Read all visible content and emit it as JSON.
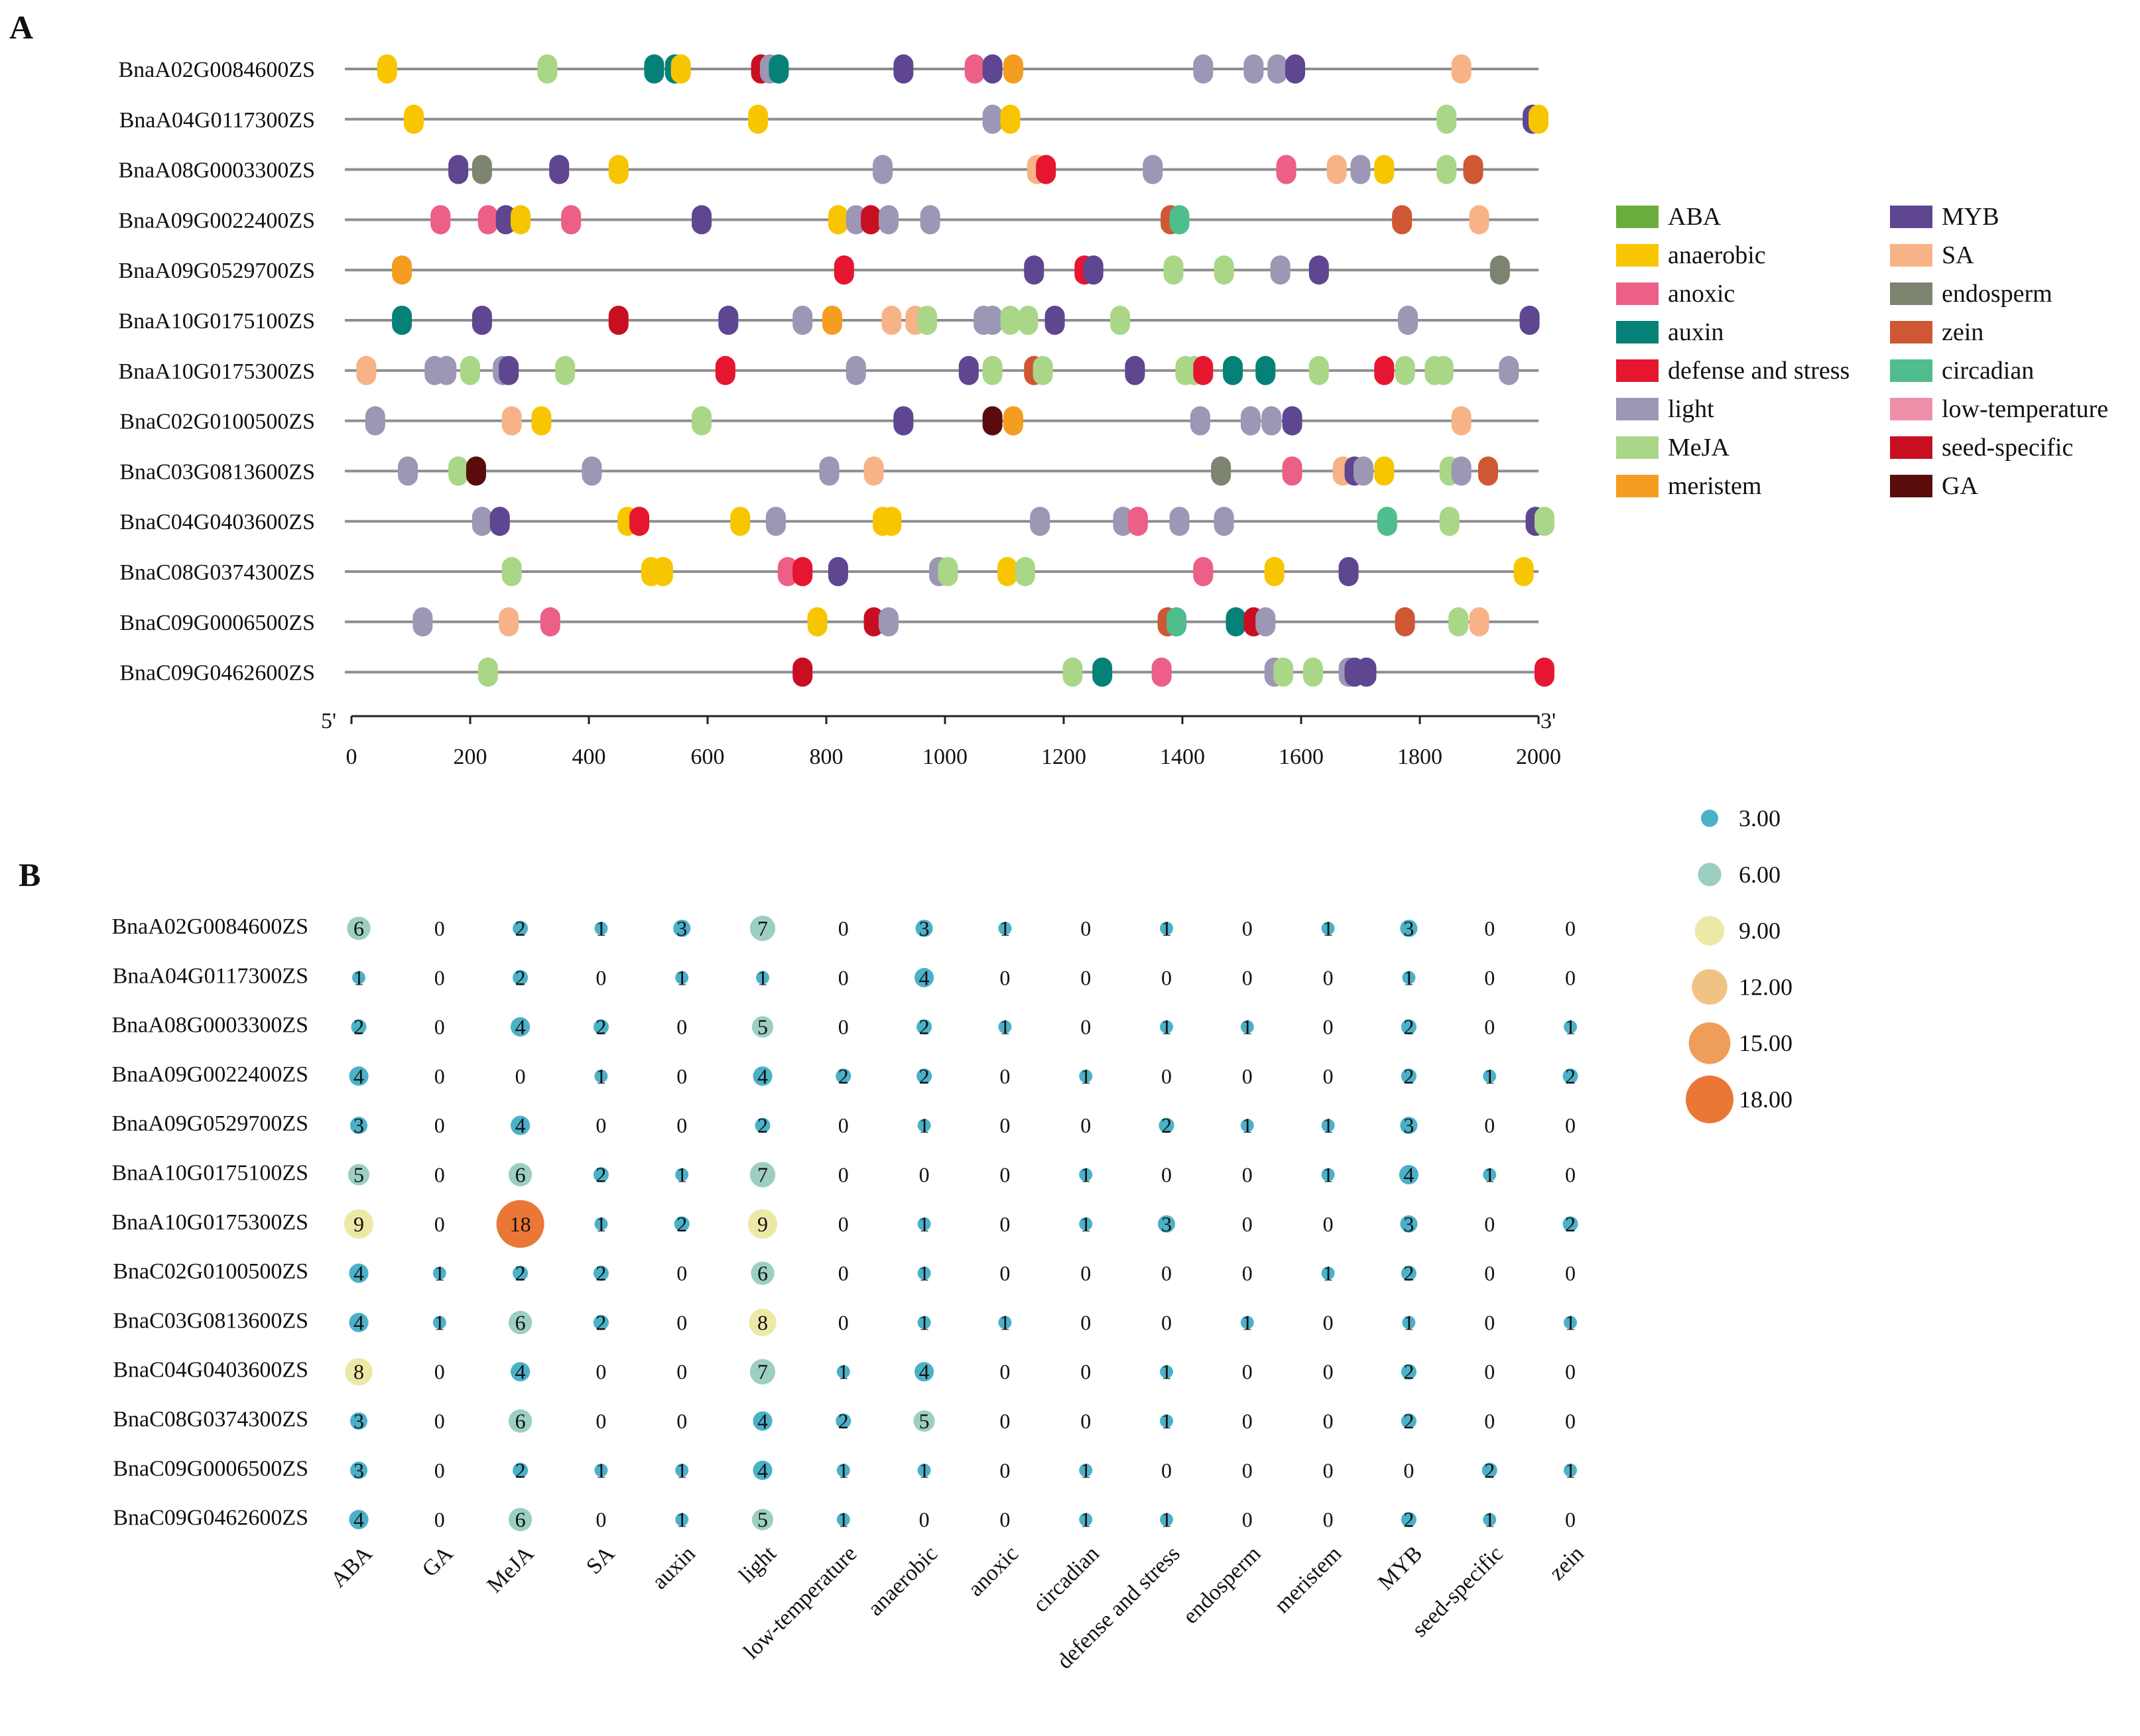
{
  "panel_labels": {
    "a": "A",
    "b": "B"
  },
  "colors": {
    "ABA": "#6aad3d",
    "anaerobic": "#f7c600",
    "anoxic": "#ec5f86",
    "auxin": "#058178",
    "defense and stress": "#e61630",
    "light": "#9b97b5",
    "MeJA": "#a9d787",
    "meristem": "#f59d21",
    "MYB": "#5f4691",
    "SA": "#f7b387",
    "endosperm": "#7d8470",
    "zein": "#cf5734",
    "circadian": "#4fbd8c",
    "low-temperature": "#ee8fa8",
    "seed-specific": "#c80f22",
    "GA": "#5a0c0c"
  },
  "chart_data": [
    {
      "type": "promoter-map",
      "genes": [
        "BnaA02G0084600ZS",
        "BnaA04G0117300ZS",
        "BnaA08G0003300ZS",
        "BnaA09G0022400ZS",
        "BnaA09G0529700ZS",
        "BnaA10G0175100ZS",
        "BnaA10G0175300ZS",
        "BnaC02G0100500ZS",
        "BnaC03G0813600ZS",
        "BnaC04G0403600ZS",
        "BnaC08G0374300ZS",
        "BnaC09G0006500ZS",
        "BnaC09G0462600ZS"
      ],
      "xlim": [
        0,
        2000
      ],
      "xticks": [
        "0",
        "200",
        "400",
        "600",
        "800",
        "1000",
        "1200",
        "1400",
        "1600",
        "1800",
        "2000"
      ],
      "five_prime": "5'",
      "three_prime": "3'",
      "legend": [
        "ABA",
        "anaerobic",
        "anoxic",
        "auxin",
        "defense and stress",
        "light",
        "MeJA",
        "meristem",
        "MYB",
        "SA",
        "endosperm",
        "zein",
        "circadian",
        "low-temperature",
        "seed-specific",
        "GA"
      ],
      "elements": [
        [
          [
            60,
            "anaerobic"
          ],
          [
            330,
            "MeJA"
          ],
          [
            510,
            "auxin"
          ],
          [
            545,
            "auxin"
          ],
          [
            555,
            "anaerobic"
          ],
          [
            690,
            "seed-specific"
          ],
          [
            705,
            "light"
          ],
          [
            720,
            "auxin"
          ],
          [
            930,
            "MYB"
          ],
          [
            1050,
            "anoxic"
          ],
          [
            1080,
            "MYB"
          ],
          [
            1115,
            "meristem"
          ],
          [
            1435,
            "light"
          ],
          [
            1520,
            "light"
          ],
          [
            1560,
            "light"
          ],
          [
            1590,
            "MYB"
          ],
          [
            1870,
            "SA"
          ]
        ],
        [
          [
            105,
            "anaerobic"
          ],
          [
            685,
            "anaerobic"
          ],
          [
            1080,
            "light"
          ],
          [
            1110,
            "anaerobic"
          ],
          [
            1845,
            "MeJA"
          ],
          [
            1990,
            "MYB"
          ],
          [
            2000,
            "anaerobic"
          ]
        ],
        [
          [
            180,
            "MYB"
          ],
          [
            220,
            "endosperm"
          ],
          [
            350,
            "MYB"
          ],
          [
            450,
            "anaerobic"
          ],
          [
            895,
            "light"
          ],
          [
            1155,
            "SA"
          ],
          [
            1170,
            "defense and stress"
          ],
          [
            1350,
            "light"
          ],
          [
            1575,
            "anoxic"
          ],
          [
            1660,
            "SA"
          ],
          [
            1700,
            "light"
          ],
          [
            1740,
            "anaerobic"
          ],
          [
            1845,
            "MeJA"
          ],
          [
            1890,
            "zein"
          ]
        ],
        [
          [
            150,
            "anoxic"
          ],
          [
            230,
            "anoxic"
          ],
          [
            260,
            "MYB"
          ],
          [
            285,
            "anaerobic"
          ],
          [
            370,
            "anoxic"
          ],
          [
            590,
            "MYB"
          ],
          [
            820,
            "anaerobic"
          ],
          [
            850,
            "light"
          ],
          [
            875,
            "seed-specific"
          ],
          [
            905,
            "light"
          ],
          [
            975,
            "light"
          ],
          [
            1380,
            "zein"
          ],
          [
            1395,
            "circadian"
          ],
          [
            1770,
            "zein"
          ],
          [
            1900,
            "SA"
          ]
        ],
        [
          [
            85,
            "meristem"
          ],
          [
            830,
            "defense and stress"
          ],
          [
            1150,
            "MYB"
          ],
          [
            1235,
            "defense and stress"
          ],
          [
            1250,
            "MYB"
          ],
          [
            1385,
            "MeJA"
          ],
          [
            1470,
            "MeJA"
          ],
          [
            1565,
            "light"
          ],
          [
            1630,
            "MYB"
          ],
          [
            1935,
            "endosperm"
          ]
        ],
        [
          [
            85,
            "auxin"
          ],
          [
            220,
            "MYB"
          ],
          [
            450,
            "seed-specific"
          ],
          [
            635,
            "MYB"
          ],
          [
            760,
            "light"
          ],
          [
            810,
            "meristem"
          ],
          [
            910,
            "SA"
          ],
          [
            950,
            "SA"
          ],
          [
            970,
            "MeJA"
          ],
          [
            1065,
            "light"
          ],
          [
            1080,
            "light"
          ],
          [
            1110,
            "MeJA"
          ],
          [
            1140,
            "MeJA"
          ],
          [
            1185,
            "MYB"
          ],
          [
            1295,
            "MeJA"
          ],
          [
            1780,
            "light"
          ],
          [
            1985,
            "MYB"
          ]
        ],
        [
          [
            25,
            "SA"
          ],
          [
            140,
            "light"
          ],
          [
            160,
            "light"
          ],
          [
            200,
            "MeJA"
          ],
          [
            255,
            "light"
          ],
          [
            265,
            "MYB"
          ],
          [
            360,
            "MeJA"
          ],
          [
            630,
            "defense and stress"
          ],
          [
            850,
            "light"
          ],
          [
            1040,
            "MYB"
          ],
          [
            1080,
            "MeJA"
          ],
          [
            1150,
            "zein"
          ],
          [
            1165,
            "MeJA"
          ],
          [
            1320,
            "MYB"
          ],
          [
            1405,
            "MeJA"
          ],
          [
            1420,
            "MeJA"
          ],
          [
            1435,
            "defense and stress"
          ],
          [
            1485,
            "auxin"
          ],
          [
            1540,
            "auxin"
          ],
          [
            1630,
            "MeJA"
          ],
          [
            1740,
            "defense and stress"
          ],
          [
            1775,
            "MeJA"
          ],
          [
            1825,
            "MeJA"
          ],
          [
            1840,
            "MeJA"
          ],
          [
            1950,
            "light"
          ]
        ],
        [
          [
            40,
            "light"
          ],
          [
            270,
            "SA"
          ],
          [
            320,
            "anaerobic"
          ],
          [
            590,
            "MeJA"
          ],
          [
            930,
            "MYB"
          ],
          [
            1080,
            "GA"
          ],
          [
            1115,
            "meristem"
          ],
          [
            1430,
            "light"
          ],
          [
            1515,
            "light"
          ],
          [
            1550,
            "light"
          ],
          [
            1585,
            "MYB"
          ],
          [
            1870,
            "SA"
          ]
        ],
        [
          [
            95,
            "light"
          ],
          [
            180,
            "MeJA"
          ],
          [
            210,
            "GA"
          ],
          [
            405,
            "light"
          ],
          [
            805,
            "light"
          ],
          [
            880,
            "SA"
          ],
          [
            1465,
            "endosperm"
          ],
          [
            1585,
            "anoxic"
          ],
          [
            1670,
            "SA"
          ],
          [
            1690,
            "MYB"
          ],
          [
            1705,
            "light"
          ],
          [
            1740,
            "anaerobic"
          ],
          [
            1850,
            "MeJA"
          ],
          [
            1870,
            "light"
          ],
          [
            1915,
            "zein"
          ]
        ],
        [
          [
            220,
            "light"
          ],
          [
            250,
            "MYB"
          ],
          [
            465,
            "anaerobic"
          ],
          [
            485,
            "defense and stress"
          ],
          [
            655,
            "anaerobic"
          ],
          [
            715,
            "light"
          ],
          [
            895,
            "anaerobic"
          ],
          [
            910,
            "anaerobic"
          ],
          [
            1160,
            "light"
          ],
          [
            1300,
            "light"
          ],
          [
            1325,
            "anoxic"
          ],
          [
            1395,
            "light"
          ],
          [
            1470,
            "light"
          ],
          [
            1745,
            "circadian"
          ],
          [
            1850,
            "MeJA"
          ],
          [
            1995,
            "MYB"
          ],
          [
            2010,
            "MeJA"
          ]
        ],
        [
          [
            270,
            "MeJA"
          ],
          [
            505,
            "anaerobic"
          ],
          [
            525,
            "anaerobic"
          ],
          [
            735,
            "anoxic"
          ],
          [
            760,
            "defense and stress"
          ],
          [
            820,
            "MYB"
          ],
          [
            990,
            "light"
          ],
          [
            1005,
            "MeJA"
          ],
          [
            1105,
            "anaerobic"
          ],
          [
            1135,
            "MeJA"
          ],
          [
            1435,
            "anoxic"
          ],
          [
            1555,
            "anaerobic"
          ],
          [
            1680,
            "MYB"
          ],
          [
            1975,
            "anaerobic"
          ]
        ],
        [
          [
            120,
            "light"
          ],
          [
            265,
            "SA"
          ],
          [
            335,
            "anoxic"
          ],
          [
            785,
            "anaerobic"
          ],
          [
            880,
            "seed-specific"
          ],
          [
            905,
            "light"
          ],
          [
            1375,
            "zein"
          ],
          [
            1390,
            "circadian"
          ],
          [
            1490,
            "auxin"
          ],
          [
            1520,
            "seed-specific"
          ],
          [
            1540,
            "light"
          ],
          [
            1775,
            "zein"
          ],
          [
            1865,
            "MeJA"
          ],
          [
            1900,
            "SA"
          ]
        ],
        [
          [
            230,
            "MeJA"
          ],
          [
            760,
            "seed-specific"
          ],
          [
            1215,
            "MeJA"
          ],
          [
            1265,
            "auxin"
          ],
          [
            1365,
            "anoxic"
          ],
          [
            1555,
            "light"
          ],
          [
            1570,
            "MeJA"
          ],
          [
            1620,
            "MeJA"
          ],
          [
            1680,
            "light"
          ],
          [
            1690,
            "MYB"
          ],
          [
            1710,
            "MYB"
          ],
          [
            2010,
            "defense and stress"
          ]
        ]
      ]
    },
    {
      "type": "bubble-table",
      "genes": [
        "BnaA02G0084600ZS",
        "BnaA04G0117300ZS",
        "BnaA08G0003300ZS",
        "BnaA09G0022400ZS",
        "BnaA09G0529700ZS",
        "BnaA10G0175100ZS",
        "BnaA10G0175300ZS",
        "BnaC02G0100500ZS",
        "BnaC03G0813600ZS",
        "BnaC04G0403600ZS",
        "BnaC08G0374300ZS",
        "BnaC09G0006500ZS",
        "BnaC09G0462600ZS"
      ],
      "categories": [
        "ABA",
        "GA",
        "MeJA",
        "SA",
        "auxin",
        "light",
        "low-temperature",
        "anaerobic",
        "anoxic",
        "circadian",
        "defense and stress",
        "endosperm",
        "meristem",
        "MYB",
        "seed-specific",
        "zein"
      ],
      "values": [
        [
          6,
          0,
          2,
          1,
          3,
          7,
          0,
          3,
          1,
          0,
          1,
          0,
          1,
          3,
          0,
          0
        ],
        [
          1,
          0,
          2,
          0,
          1,
          1,
          0,
          4,
          0,
          0,
          0,
          0,
          0,
          1,
          0,
          0
        ],
        [
          2,
          0,
          4,
          2,
          0,
          5,
          0,
          2,
          1,
          0,
          1,
          1,
          0,
          2,
          0,
          1
        ],
        [
          4,
          0,
          0,
          1,
          0,
          4,
          2,
          2,
          0,
          1,
          0,
          0,
          0,
          2,
          1,
          2
        ],
        [
          3,
          0,
          4,
          0,
          0,
          2,
          0,
          1,
          0,
          0,
          2,
          1,
          1,
          3,
          0,
          0
        ],
        [
          5,
          0,
          6,
          2,
          1,
          7,
          0,
          0,
          0,
          1,
          0,
          0,
          1,
          4,
          1,
          0
        ],
        [
          9,
          0,
          18,
          1,
          2,
          9,
          0,
          1,
          0,
          1,
          3,
          0,
          0,
          3,
          0,
          2
        ],
        [
          4,
          1,
          2,
          2,
          0,
          6,
          0,
          1,
          0,
          0,
          0,
          0,
          1,
          2,
          0,
          0
        ],
        [
          4,
          1,
          6,
          2,
          0,
          8,
          0,
          1,
          1,
          0,
          0,
          1,
          0,
          1,
          0,
          1
        ],
        [
          8,
          0,
          4,
          0,
          0,
          7,
          1,
          4,
          0,
          0,
          1,
          0,
          0,
          2,
          0,
          0
        ],
        [
          3,
          0,
          6,
          0,
          0,
          4,
          2,
          5,
          0,
          0,
          1,
          0,
          0,
          2,
          0,
          0
        ],
        [
          3,
          0,
          2,
          1,
          1,
          4,
          1,
          1,
          0,
          1,
          0,
          0,
          0,
          0,
          2,
          1
        ],
        [
          4,
          0,
          6,
          0,
          1,
          5,
          1,
          0,
          0,
          1,
          1,
          0,
          0,
          2,
          1,
          0
        ]
      ],
      "size_legend": [
        "3.00",
        "6.00",
        "9.00",
        "12.00",
        "15.00",
        "18.00"
      ],
      "size_legend_values": [
        3,
        6,
        9,
        12,
        15,
        18
      ],
      "color_scale": [
        "#4bb1c9",
        "#9ccfc1",
        "#eee8a6",
        "#f0c384",
        "#ee9e59",
        "#ea7735"
      ]
    }
  ]
}
